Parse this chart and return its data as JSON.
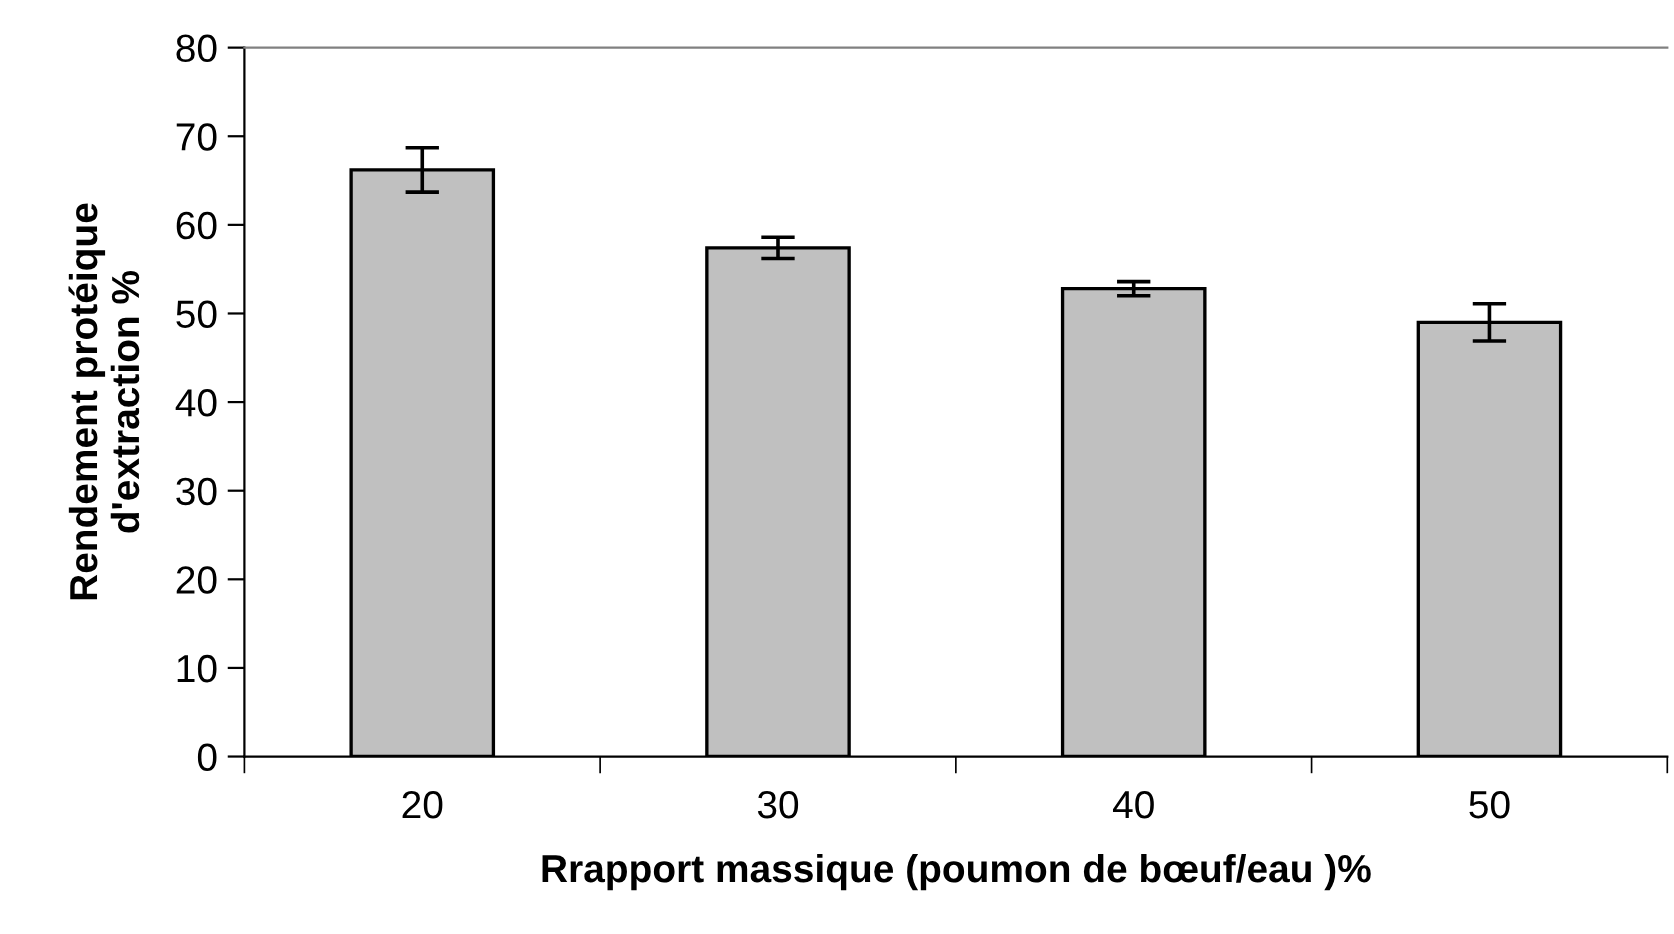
{
  "chart_data": {
    "type": "bar",
    "xlabel": "Rrapport massique (poumon de bœuf/eau )%",
    "ylabel": "Rendement protéique\nd'extraction %",
    "categories": [
      "20",
      "30",
      "40",
      "50"
    ],
    "values": [
      66.2,
      57.4,
      52.8,
      49.0
    ],
    "errors": [
      2.5,
      1.2,
      0.8,
      2.1
    ],
    "color": "#c0c0c0",
    "ylim": [
      0,
      80
    ],
    "yticks": [
      0,
      10,
      20,
      30,
      40,
      50,
      60,
      70,
      80
    ],
    "grid": false,
    "legend": false
  }
}
